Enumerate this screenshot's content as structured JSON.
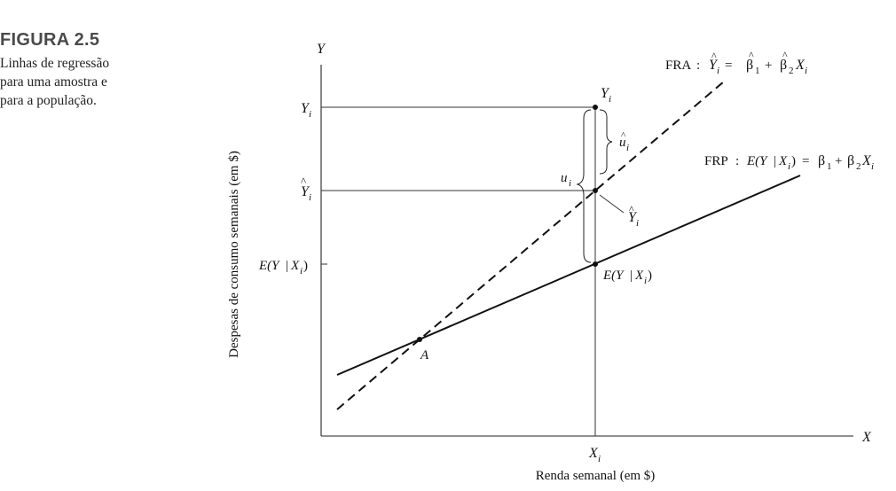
{
  "figure": {
    "label": "FIGURA 2.5",
    "caption_lines": [
      "Linhas de regressão",
      "para uma amostra e",
      "para a população."
    ]
  },
  "axes": {
    "y_axis_letter": "Y",
    "x_axis_letter": "X",
    "ylabel": "Despesas de consumo semanais (em $)",
    "xlabel": "Renda semanal (em $)"
  },
  "lines": {
    "sample": {
      "name": "FRA",
      "style": "dashed"
    },
    "population": {
      "name": "FRP",
      "style": "solid"
    }
  },
  "points": {
    "intersection": "A"
  }
}
